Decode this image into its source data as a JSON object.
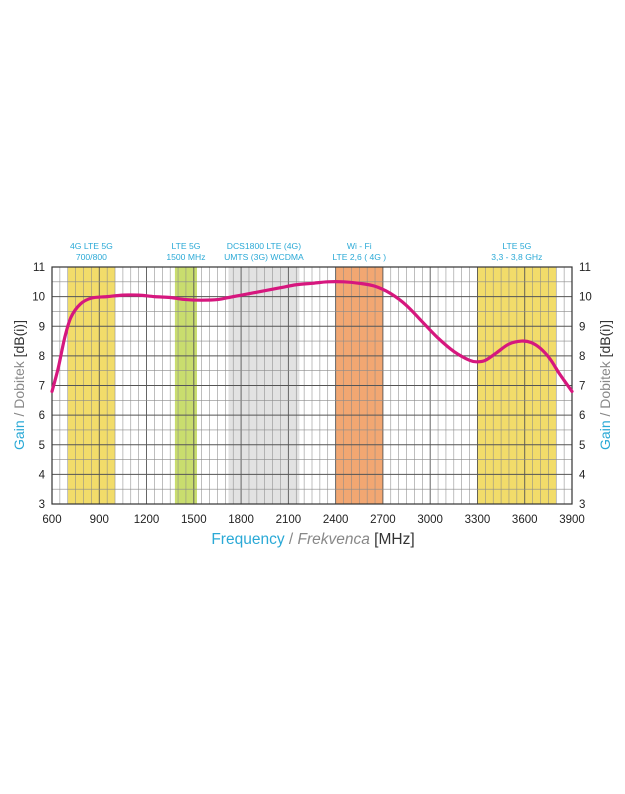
{
  "chart_data": {
    "type": "line",
    "x_title": {
      "part1": "Frequency",
      "sep": " / ",
      "part2": "Frekvenca",
      "unit": " [MHz]",
      "color1": "#2aa9d6",
      "color2": "#888888",
      "color_unit": "#333333"
    },
    "y_title": {
      "part1": "Gain",
      "sep": " / ",
      "part2": "Dobitek",
      "unit": " [dB(i)]",
      "color1": "#2aa9d6",
      "color2": "#888888",
      "color_unit": "#333333"
    },
    "xlim": [
      600,
      3900
    ],
    "ylim": [
      3,
      11
    ],
    "x_ticks": [
      600,
      900,
      1200,
      1500,
      1800,
      2100,
      2400,
      2700,
      3000,
      3300,
      3600,
      3900
    ],
    "y_ticks": [
      3,
      4,
      5,
      6,
      7,
      8,
      9,
      10,
      11
    ],
    "grid": true,
    "bands": [
      {
        "label_lines": [
          "4G LTE 5G",
          "700/800"
        ],
        "from": 700,
        "to": 1000,
        "color": "#f2dc6a"
      },
      {
        "label_lines": [
          "LTE 5G",
          "1500 MHz"
        ],
        "from": 1380,
        "to": 1520,
        "color": "#c9dd6e"
      },
      {
        "label_lines": [
          "DCS1800 LTE (4G)",
          "UMTS (3G) WCDMA"
        ],
        "from": 1720,
        "to": 2170,
        "color": "#e2e2e2"
      },
      {
        "label_lines": [
          "Wi - Fi",
          "LTE 2,6 ( 4G )"
        ],
        "from": 2400,
        "to": 2700,
        "color": "#f2a772"
      },
      {
        "label_lines": [
          "LTE 5G",
          "3,3 - 3,8 GHz"
        ],
        "from": 3300,
        "to": 3800,
        "color": "#f2dc6a"
      }
    ],
    "series": [
      {
        "color": "#d6177e",
        "x": [
          600,
          640,
          680,
          720,
          780,
          850,
          950,
          1050,
          1150,
          1250,
          1350,
          1450,
          1550,
          1650,
          1750,
          1850,
          1950,
          2050,
          2150,
          2250,
          2350,
          2450,
          2550,
          2650,
          2750,
          2850,
          2950,
          3050,
          3150,
          3250,
          3300,
          3350,
          3420,
          3500,
          3580,
          3640,
          3700,
          3760,
          3820,
          3880,
          3900
        ],
        "y": [
          6.8,
          7.6,
          8.6,
          9.3,
          9.75,
          9.95,
          10.0,
          10.05,
          10.05,
          10.0,
          9.97,
          9.9,
          9.88,
          9.9,
          10.0,
          10.1,
          10.2,
          10.3,
          10.4,
          10.45,
          10.5,
          10.5,
          10.45,
          10.35,
          10.1,
          9.7,
          9.15,
          8.6,
          8.15,
          7.85,
          7.8,
          7.85,
          8.1,
          8.4,
          8.5,
          8.45,
          8.25,
          7.9,
          7.4,
          6.95,
          6.8
        ]
      }
    ]
  }
}
